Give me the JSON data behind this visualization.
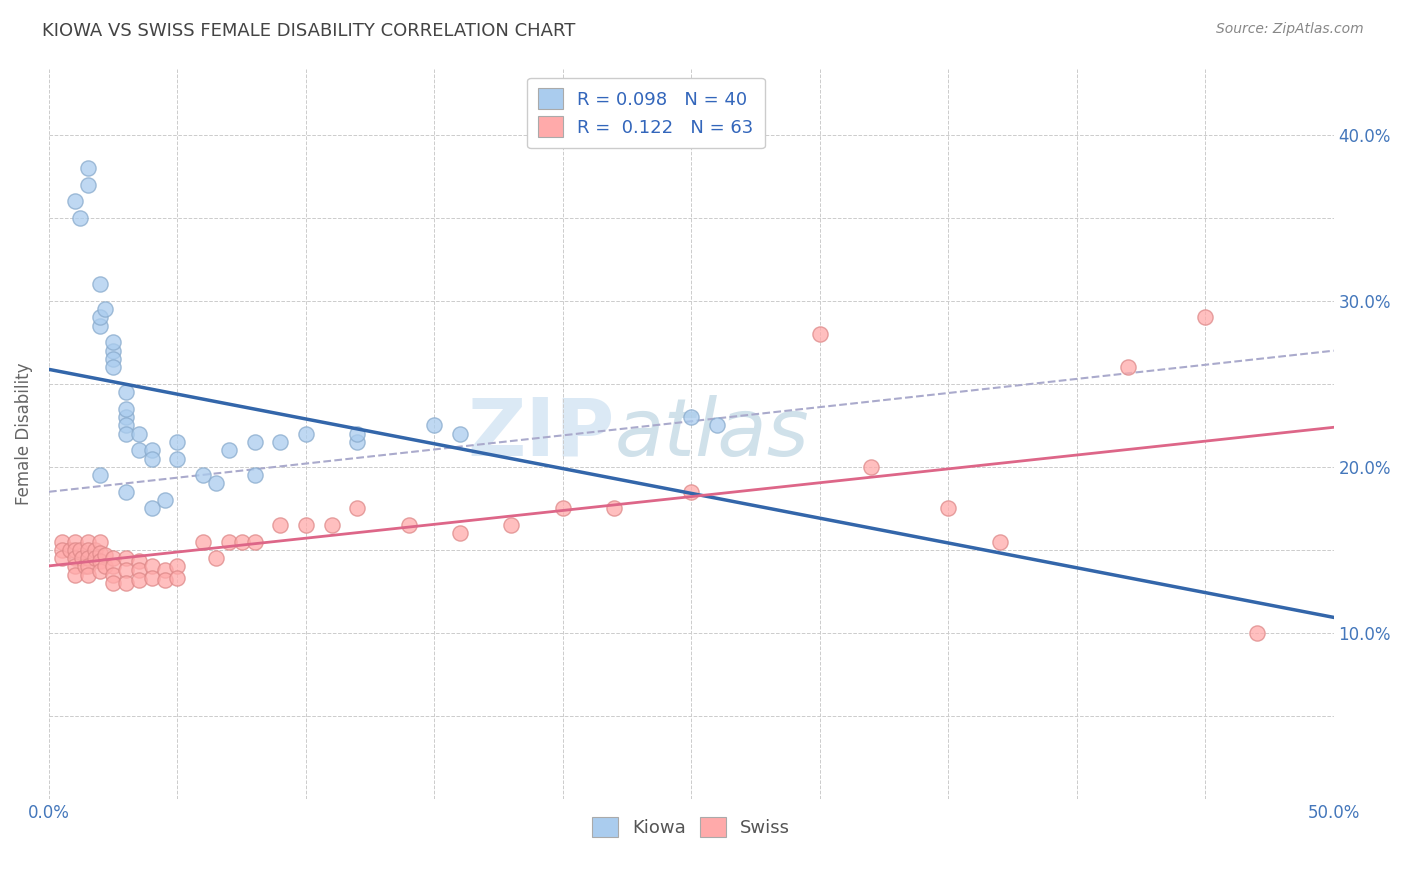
{
  "title": "KIOWA VS SWISS FEMALE DISABILITY CORRELATION CHART",
  "source": "Source: ZipAtlas.com",
  "ylabel": "Female Disability",
  "xlim": [
    0.0,
    0.5
  ],
  "ylim": [
    0.0,
    0.44
  ],
  "background_color": "#ffffff",
  "grid_color": "#cccccc",
  "kiowa_color": "#aaccee",
  "kiowa_edge_color": "#88aacc",
  "swiss_color": "#ffaaaa",
  "swiss_edge_color": "#dd8888",
  "kiowa_line_color": "#3366aa",
  "swiss_line_color": "#dd6688",
  "dashed_line_color": "#aaaacc",
  "watermark_color": "#cce0f0",
  "legend_r_kiowa": "R = 0.098",
  "legend_n_kiowa": "N = 40",
  "legend_r_swiss": "R =  0.122",
  "legend_n_swiss": "N = 63",
  "kiowa_x": [
    0.01,
    0.012,
    0.015,
    0.015,
    0.02,
    0.02,
    0.02,
    0.022,
    0.025,
    0.025,
    0.025,
    0.025,
    0.03,
    0.03,
    0.03,
    0.03,
    0.03,
    0.035,
    0.035,
    0.04,
    0.04,
    0.05,
    0.05,
    0.07,
    0.08,
    0.1,
    0.12,
    0.15,
    0.16,
    0.25,
    0.26,
    0.02,
    0.03,
    0.04,
    0.045,
    0.06,
    0.065,
    0.08,
    0.09,
    0.12
  ],
  "kiowa_y": [
    0.36,
    0.35,
    0.38,
    0.37,
    0.285,
    0.29,
    0.31,
    0.295,
    0.27,
    0.265,
    0.26,
    0.275,
    0.245,
    0.23,
    0.235,
    0.225,
    0.22,
    0.22,
    0.21,
    0.21,
    0.205,
    0.205,
    0.215,
    0.21,
    0.215,
    0.22,
    0.215,
    0.225,
    0.22,
    0.23,
    0.225,
    0.195,
    0.185,
    0.175,
    0.18,
    0.195,
    0.19,
    0.195,
    0.215,
    0.22
  ],
  "swiss_x": [
    0.005,
    0.005,
    0.005,
    0.008,
    0.01,
    0.01,
    0.01,
    0.01,
    0.01,
    0.012,
    0.013,
    0.014,
    0.015,
    0.015,
    0.015,
    0.015,
    0.015,
    0.018,
    0.018,
    0.02,
    0.02,
    0.02,
    0.02,
    0.022,
    0.022,
    0.025,
    0.025,
    0.025,
    0.025,
    0.03,
    0.03,
    0.03,
    0.035,
    0.035,
    0.035,
    0.04,
    0.04,
    0.045,
    0.045,
    0.05,
    0.05,
    0.06,
    0.065,
    0.07,
    0.075,
    0.08,
    0.09,
    0.1,
    0.11,
    0.12,
    0.14,
    0.16,
    0.18,
    0.2,
    0.22,
    0.25,
    0.3,
    0.32,
    0.35,
    0.37,
    0.42,
    0.45,
    0.47
  ],
  "swiss_y": [
    0.155,
    0.15,
    0.145,
    0.15,
    0.155,
    0.15,
    0.145,
    0.14,
    0.135,
    0.15,
    0.145,
    0.14,
    0.155,
    0.15,
    0.145,
    0.14,
    0.135,
    0.15,
    0.145,
    0.155,
    0.148,
    0.143,
    0.137,
    0.147,
    0.14,
    0.145,
    0.14,
    0.135,
    0.13,
    0.145,
    0.138,
    0.13,
    0.143,
    0.138,
    0.132,
    0.14,
    0.133,
    0.138,
    0.132,
    0.14,
    0.133,
    0.155,
    0.145,
    0.155,
    0.155,
    0.155,
    0.165,
    0.165,
    0.165,
    0.175,
    0.165,
    0.16,
    0.165,
    0.175,
    0.175,
    0.185,
    0.28,
    0.2,
    0.175,
    0.155,
    0.26,
    0.29,
    0.1
  ]
}
